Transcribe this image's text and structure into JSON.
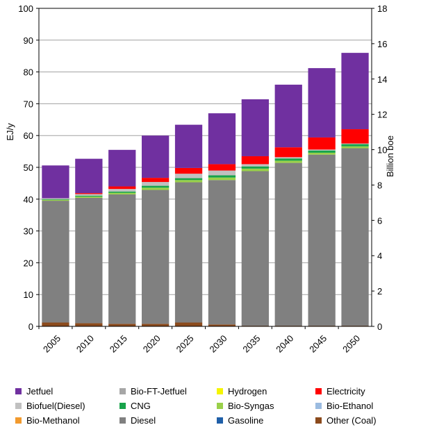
{
  "chart_data": {
    "type": "bar",
    "stacked": true,
    "categories": [
      "2005",
      "2010",
      "2015",
      "2020",
      "2025",
      "2030",
      "2035",
      "2040",
      "2045",
      "2050"
    ],
    "ylabel": "EJ/y",
    "ylabel2": "Billion boe",
    "ylim": [
      0,
      100
    ],
    "y2lim": [
      0,
      18
    ],
    "yticks": [
      "0",
      "10",
      "20",
      "30",
      "40",
      "50",
      "60",
      "70",
      "80",
      "90",
      "100"
    ],
    "y2ticks": [
      "0",
      "2",
      "4",
      "6",
      "8",
      "10",
      "12",
      "14",
      "16",
      "18"
    ],
    "grid": true,
    "legend_position": "bottom",
    "series": [
      {
        "name": "Other (Coal)",
        "color": "#8b4a1c",
        "values": [
          1.2,
          1.0,
          0.8,
          0.8,
          1.2,
          0.6,
          0.2,
          0.2,
          0.2,
          0.2
        ]
      },
      {
        "name": "Gasoline",
        "color": "#1f5fa8",
        "values": [
          0,
          0,
          0,
          0,
          0,
          0,
          0,
          0,
          0,
          0
        ]
      },
      {
        "name": "Diesel",
        "color": "#808080",
        "values": [
          38.3,
          39.4,
          40.7,
          42.1,
          44.1,
          45.4,
          48.6,
          51.2,
          53.8,
          55.8
        ]
      },
      {
        "name": "Bio-Methanol",
        "color": "#f29a2e",
        "values": [
          0,
          0,
          0,
          0,
          0,
          0,
          0,
          0,
          0,
          0
        ]
      },
      {
        "name": "Bio-Ethanol",
        "color": "#9bbbe0",
        "values": [
          0,
          0,
          0,
          0,
          0,
          0,
          0,
          0,
          0,
          0
        ]
      },
      {
        "name": "Bio-Syngas",
        "color": "#9ad04a",
        "values": [
          0.3,
          0.4,
          0.5,
          0.7,
          0.7,
          0.8,
          0.8,
          0.7,
          0.6,
          0.6
        ]
      },
      {
        "name": "CNG",
        "color": "#17a34a",
        "values": [
          0.2,
          0.3,
          0.4,
          0.6,
          0.6,
          0.7,
          0.7,
          0.7,
          0.7,
          0.7
        ]
      },
      {
        "name": "Biofuel(Diesel)",
        "color": "#c0c0c0",
        "values": [
          0.3,
          0.5,
          0.8,
          1.2,
          1.4,
          1.5,
          0.7,
          0.4,
          0.3,
          0.2
        ]
      },
      {
        "name": "Electricity",
        "color": "#ff0000",
        "values": [
          0,
          0.3,
          0.8,
          1.3,
          1.8,
          2.0,
          2.5,
          3.1,
          3.8,
          4.5
        ]
      },
      {
        "name": "Hydrogen",
        "color": "#f5f500",
        "values": [
          0,
          0,
          0,
          0,
          0,
          0,
          0,
          0,
          0,
          0
        ]
      },
      {
        "name": "Bio-FT-Jetfuel",
        "color": "#a6a6a6",
        "values": [
          0,
          0,
          0,
          0,
          0,
          0,
          0,
          0,
          0,
          0
        ]
      },
      {
        "name": "Jetfuel",
        "color": "#7030a0",
        "values": [
          10.3,
          10.8,
          11.5,
          13.3,
          13.6,
          16.0,
          17.9,
          19.7,
          21.8,
          24.0
        ]
      }
    ],
    "legend": [
      {
        "name": "Jetfuel",
        "color": "#7030a0"
      },
      {
        "name": "Bio-FT-Jetfuel",
        "color": "#a6a6a6"
      },
      {
        "name": "Hydrogen",
        "color": "#f5f500"
      },
      {
        "name": "Electricity",
        "color": "#ff0000"
      },
      {
        "name": "Biofuel(Diesel)",
        "color": "#c0c0c0"
      },
      {
        "name": "CNG",
        "color": "#17a34a"
      },
      {
        "name": "Bio-Syngas",
        "color": "#9ad04a"
      },
      {
        "name": "Bio-Ethanol",
        "color": "#9bbbe0"
      },
      {
        "name": "Bio-Methanol",
        "color": "#f29a2e"
      },
      {
        "name": "Diesel",
        "color": "#808080"
      },
      {
        "name": "Gasoline",
        "color": "#1f5fa8"
      },
      {
        "name": "Other (Coal)",
        "color": "#8b4a1c"
      }
    ]
  }
}
